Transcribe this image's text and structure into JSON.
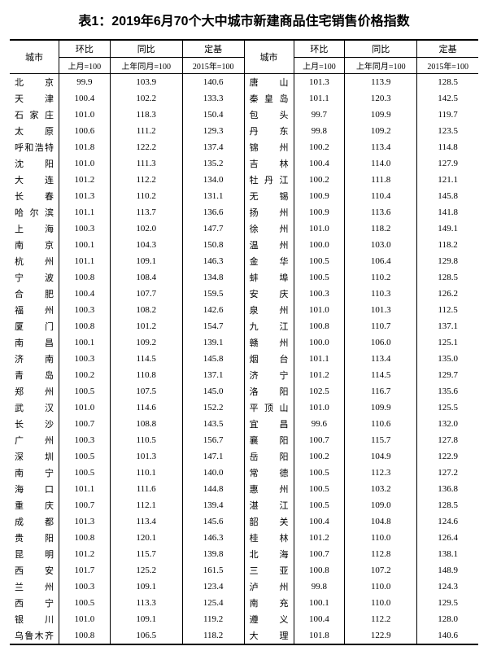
{
  "title": "表1：2019年6月70个大中城市新建商品住宅销售价格指数",
  "headers": {
    "city": "城市",
    "mom": "环比",
    "yoy": "同比",
    "base": "定基",
    "mom_sub": "上月=100",
    "yoy_sub": "上年同月=100",
    "base_sub": "2015年=100"
  },
  "left": [
    {
      "c": "北　　京",
      "m": "99.9",
      "y": "103.9",
      "b": "140.6"
    },
    {
      "c": "天　　津",
      "m": "100.4",
      "y": "102.2",
      "b": "133.3"
    },
    {
      "c": "石 家 庄",
      "m": "101.0",
      "y": "118.3",
      "b": "150.4"
    },
    {
      "c": "太　　原",
      "m": "100.6",
      "y": "111.2",
      "b": "129.3"
    },
    {
      "c": "呼和浩特",
      "m": "101.8",
      "y": "122.2",
      "b": "137.4"
    },
    {
      "c": "沈　　阳",
      "m": "101.0",
      "y": "111.3",
      "b": "135.2"
    },
    {
      "c": "大　　连",
      "m": "101.2",
      "y": "112.2",
      "b": "134.0"
    },
    {
      "c": "长　　春",
      "m": "101.3",
      "y": "110.2",
      "b": "131.1"
    },
    {
      "c": "哈 尔 滨",
      "m": "101.1",
      "y": "113.7",
      "b": "136.6"
    },
    {
      "c": "上　　海",
      "m": "100.3",
      "y": "102.0",
      "b": "147.7"
    },
    {
      "c": "南　　京",
      "m": "100.1",
      "y": "104.3",
      "b": "150.8"
    },
    {
      "c": "杭　　州",
      "m": "101.1",
      "y": "109.1",
      "b": "146.3"
    },
    {
      "c": "宁　　波",
      "m": "100.8",
      "y": "108.4",
      "b": "134.8"
    },
    {
      "c": "合　　肥",
      "m": "100.4",
      "y": "107.7",
      "b": "159.5"
    },
    {
      "c": "福　　州",
      "m": "100.3",
      "y": "108.2",
      "b": "142.6"
    },
    {
      "c": "厦　　门",
      "m": "100.8",
      "y": "101.2",
      "b": "154.7"
    },
    {
      "c": "南　　昌",
      "m": "100.1",
      "y": "109.2",
      "b": "139.1"
    },
    {
      "c": "济　　南",
      "m": "100.3",
      "y": "114.5",
      "b": "145.8"
    },
    {
      "c": "青　　岛",
      "m": "100.2",
      "y": "110.8",
      "b": "137.1"
    },
    {
      "c": "郑　　州",
      "m": "100.5",
      "y": "107.5",
      "b": "145.0"
    },
    {
      "c": "武　　汉",
      "m": "101.0",
      "y": "114.6",
      "b": "152.2"
    },
    {
      "c": "长　　沙",
      "m": "100.7",
      "y": "108.8",
      "b": "143.5"
    },
    {
      "c": "广　　州",
      "m": "100.3",
      "y": "110.5",
      "b": "156.7"
    },
    {
      "c": "深　　圳",
      "m": "100.5",
      "y": "101.3",
      "b": "147.1"
    },
    {
      "c": "南　　宁",
      "m": "100.5",
      "y": "110.1",
      "b": "140.0"
    },
    {
      "c": "海　　口",
      "m": "101.1",
      "y": "111.6",
      "b": "144.8"
    },
    {
      "c": "重　　庆",
      "m": "100.7",
      "y": "112.1",
      "b": "139.4"
    },
    {
      "c": "成　　都",
      "m": "101.3",
      "y": "113.4",
      "b": "145.6"
    },
    {
      "c": "贵　　阳",
      "m": "100.8",
      "y": "120.1",
      "b": "146.3"
    },
    {
      "c": "昆　　明",
      "m": "101.2",
      "y": "115.7",
      "b": "139.8"
    },
    {
      "c": "西　　安",
      "m": "101.7",
      "y": "125.2",
      "b": "161.5"
    },
    {
      "c": "兰　　州",
      "m": "100.3",
      "y": "109.1",
      "b": "123.4"
    },
    {
      "c": "西　　宁",
      "m": "100.5",
      "y": "113.3",
      "b": "125.4"
    },
    {
      "c": "银　　川",
      "m": "101.0",
      "y": "109.1",
      "b": "119.2"
    },
    {
      "c": "乌鲁木齐",
      "m": "100.8",
      "y": "106.5",
      "b": "118.2"
    }
  ],
  "right": [
    {
      "c": "唐　　山",
      "m": "101.3",
      "y": "113.9",
      "b": "128.5"
    },
    {
      "c": "秦 皇 岛",
      "m": "101.1",
      "y": "120.3",
      "b": "142.5"
    },
    {
      "c": "包　　头",
      "m": "99.7",
      "y": "109.9",
      "b": "119.7"
    },
    {
      "c": "丹　　东",
      "m": "99.8",
      "y": "109.2",
      "b": "123.5"
    },
    {
      "c": "锦　　州",
      "m": "100.2",
      "y": "113.4",
      "b": "114.8"
    },
    {
      "c": "吉　　林",
      "m": "100.4",
      "y": "114.0",
      "b": "127.9"
    },
    {
      "c": "牡 丹 江",
      "m": "100.2",
      "y": "111.8",
      "b": "121.1"
    },
    {
      "c": "无　　锡",
      "m": "100.9",
      "y": "110.4",
      "b": "145.8"
    },
    {
      "c": "扬　　州",
      "m": "100.9",
      "y": "113.6",
      "b": "141.8"
    },
    {
      "c": "徐　　州",
      "m": "101.0",
      "y": "118.2",
      "b": "149.1"
    },
    {
      "c": "温　　州",
      "m": "100.0",
      "y": "103.0",
      "b": "118.2"
    },
    {
      "c": "金　　华",
      "m": "100.5",
      "y": "106.4",
      "b": "129.8"
    },
    {
      "c": "蚌　　埠",
      "m": "100.5",
      "y": "110.2",
      "b": "128.5"
    },
    {
      "c": "安　　庆",
      "m": "100.3",
      "y": "110.3",
      "b": "126.2"
    },
    {
      "c": "泉　　州",
      "m": "101.0",
      "y": "101.3",
      "b": "112.5"
    },
    {
      "c": "九　　江",
      "m": "100.8",
      "y": "110.7",
      "b": "137.1"
    },
    {
      "c": "赣　　州",
      "m": "100.0",
      "y": "106.0",
      "b": "125.1"
    },
    {
      "c": "烟　　台",
      "m": "101.1",
      "y": "113.4",
      "b": "135.0"
    },
    {
      "c": "济　　宁",
      "m": "101.2",
      "y": "114.5",
      "b": "129.7"
    },
    {
      "c": "洛　　阳",
      "m": "102.5",
      "y": "116.7",
      "b": "135.6"
    },
    {
      "c": "平 顶 山",
      "m": "101.0",
      "y": "109.9",
      "b": "125.5"
    },
    {
      "c": "宜　　昌",
      "m": "99.6",
      "y": "110.6",
      "b": "132.0"
    },
    {
      "c": "襄　　阳",
      "m": "100.7",
      "y": "115.7",
      "b": "127.8"
    },
    {
      "c": "岳　　阳",
      "m": "100.2",
      "y": "104.9",
      "b": "122.9"
    },
    {
      "c": "常　　德",
      "m": "100.5",
      "y": "112.3",
      "b": "127.2"
    },
    {
      "c": "惠　　州",
      "m": "100.5",
      "y": "103.2",
      "b": "136.8"
    },
    {
      "c": "湛　　江",
      "m": "100.5",
      "y": "109.0",
      "b": "128.5"
    },
    {
      "c": "韶　　关",
      "m": "100.4",
      "y": "104.8",
      "b": "124.6"
    },
    {
      "c": "桂　　林",
      "m": "101.2",
      "y": "110.0",
      "b": "126.4"
    },
    {
      "c": "北　　海",
      "m": "100.7",
      "y": "112.8",
      "b": "138.1"
    },
    {
      "c": "三　　亚",
      "m": "100.8",
      "y": "107.2",
      "b": "148.9"
    },
    {
      "c": "泸　　州",
      "m": "99.8",
      "y": "110.0",
      "b": "124.3"
    },
    {
      "c": "南　　充",
      "m": "100.1",
      "y": "110.0",
      "b": "129.5"
    },
    {
      "c": "遵　　义",
      "m": "100.4",
      "y": "112.2",
      "b": "128.0"
    },
    {
      "c": "大　　理",
      "m": "101.8",
      "y": "122.9",
      "b": "140.6"
    }
  ]
}
